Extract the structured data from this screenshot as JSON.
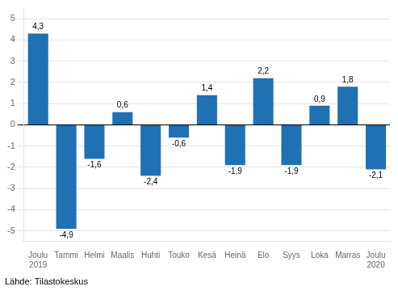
{
  "chart_data": {
    "type": "bar",
    "categories": [
      "Joulu\n2019",
      "Tammi",
      "Helmi",
      "Maalis",
      "Huhti",
      "Touko",
      "Kesä",
      "Heinä",
      "Elo",
      "Syys",
      "Loka",
      "Marras",
      "Joulu\n2020"
    ],
    "values": [
      4.3,
      -4.9,
      -1.6,
      0.6,
      -2.4,
      -0.6,
      1.4,
      -1.9,
      2.2,
      -1.9,
      0.9,
      1.8,
      -2.1
    ],
    "value_labels": [
      "4,3",
      "-4,9",
      "-1,6",
      "0,6",
      "-2,4",
      "-0,6",
      "1,4",
      "-1,9",
      "2,2",
      "-1,9",
      "0,9",
      "1,8",
      "-2,1"
    ],
    "data_labels": true,
    "color": "#2070B4",
    "ylim": [
      -5.5,
      5.5
    ],
    "yticks": [
      -5,
      -4,
      -3,
      -2,
      -1,
      0,
      1,
      2,
      3,
      4,
      5
    ],
    "grid": true,
    "annotations": [
      "Lähde: Tilastokeskus"
    ]
  }
}
